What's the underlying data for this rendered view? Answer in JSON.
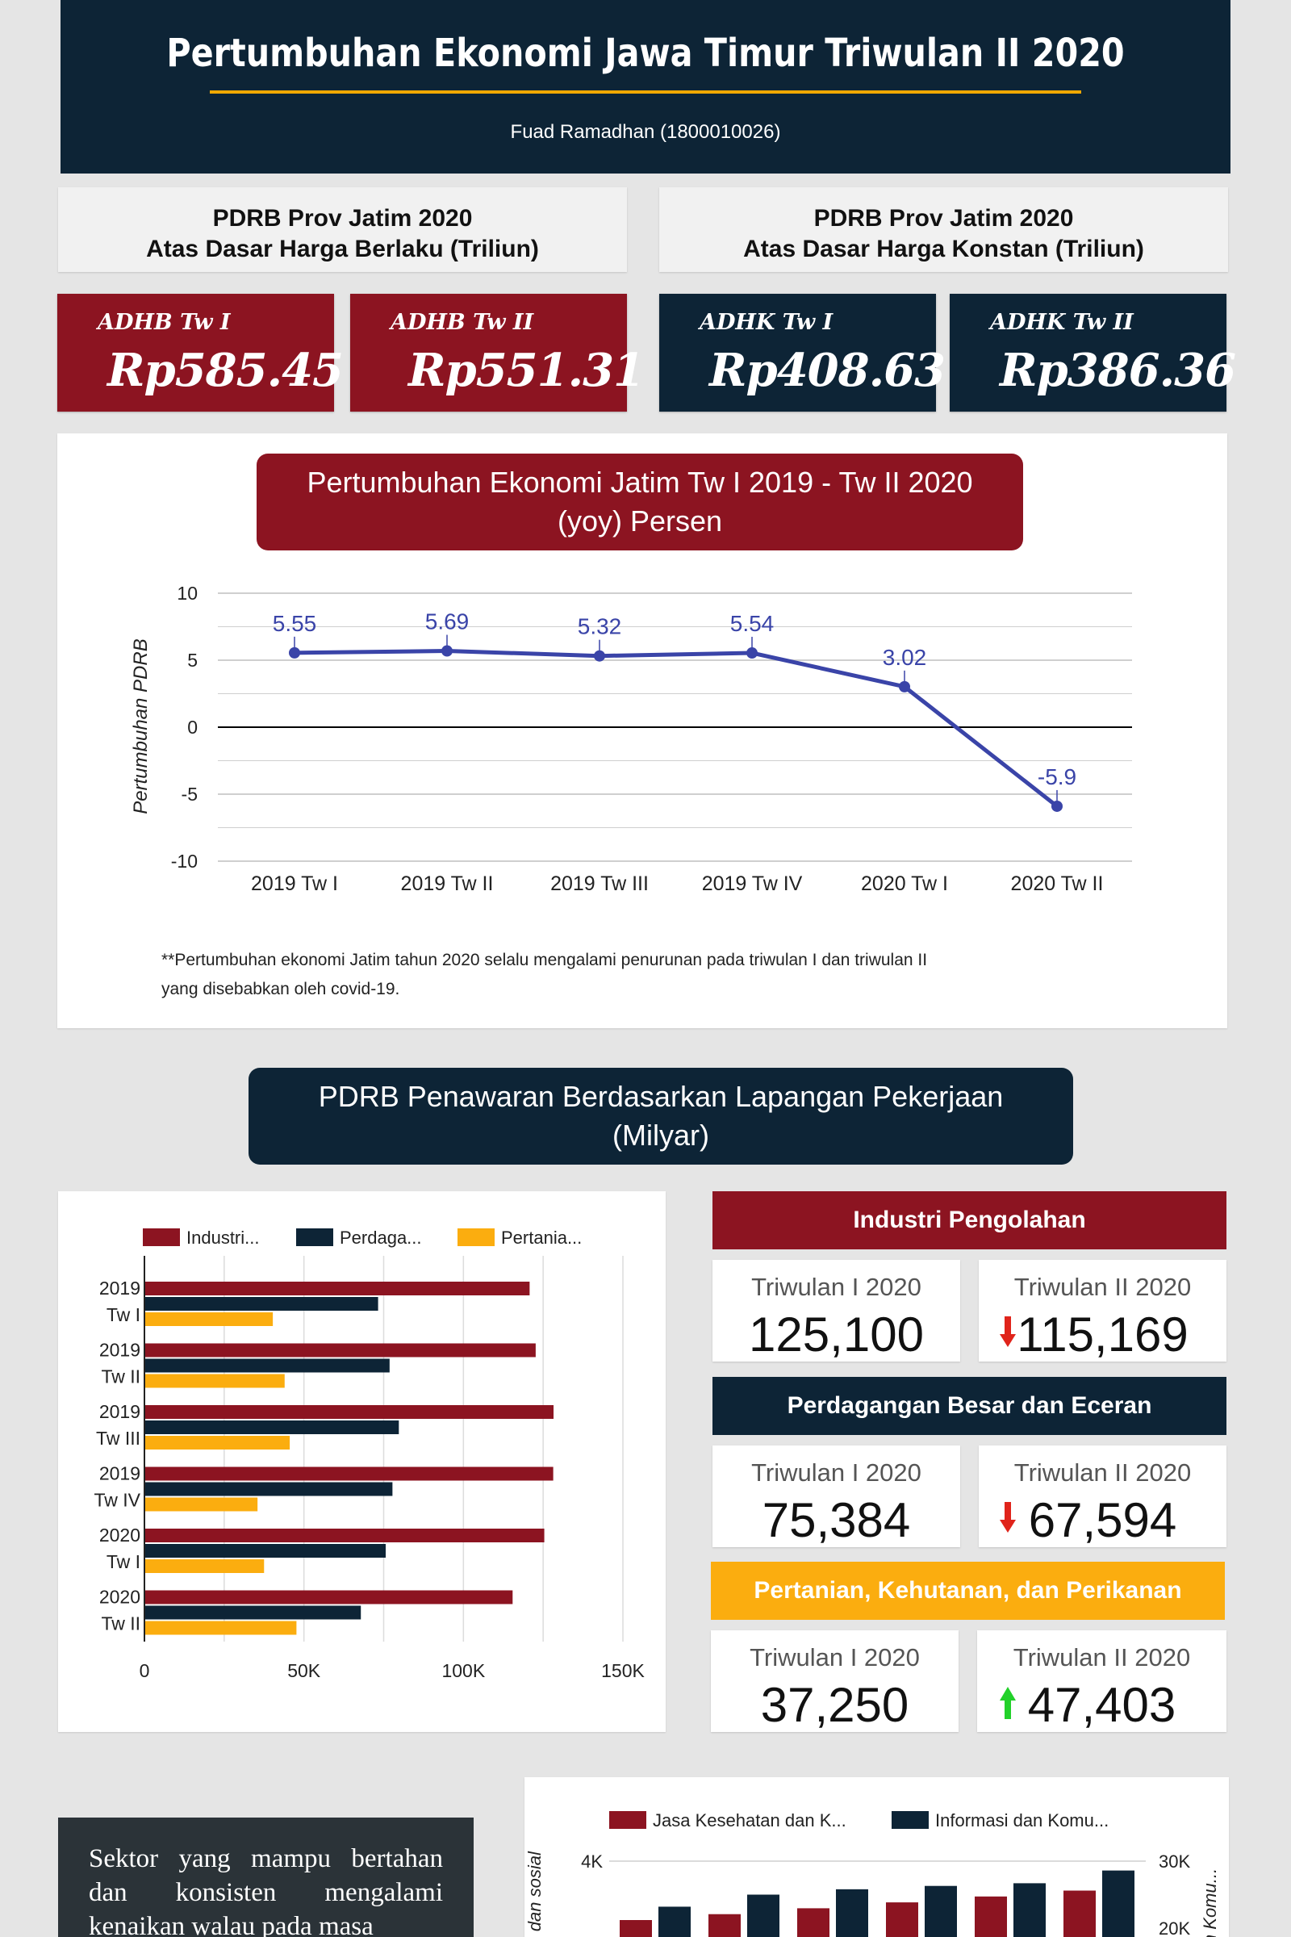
{
  "header": {
    "title": "Pertumbuhan Ekonomi Jawa Timur Triwulan II 2020",
    "author": "Fuad Ramadhan (1800010026)"
  },
  "summary": {
    "adhb_heading_1": "PDRB Prov Jatim 2020",
    "adhb_heading_2": "Atas Dasar Harga Berlaku (Triliun)",
    "adhk_heading_1": "PDRB Prov Jatim 2020",
    "adhk_heading_2": "Atas Dasar Harga Konstan (Triliun)",
    "tiles": [
      {
        "label": "ADHB Tw I",
        "value": "Rp585.45"
      },
      {
        "label": "ADHB Tw II",
        "value": "Rp551.31"
      },
      {
        "label": "ADHK Tw I",
        "value": "Rp408.63"
      },
      {
        "label": "ADHK Tw II",
        "value": "Rp386.36"
      }
    ]
  },
  "growth": {
    "title_line1": "Pertumbuhan Ekonomi Jatim Tw I 2019 - Tw II 2020",
    "title_line2": "(yoy) Persen",
    "note_line1": "**Pertumbuhan ekonomi Jatim tahun 2020 selalu mengalami penurunan pada triwulan I dan triwulan II",
    "note_line2": "yang disebabkan oleh covid-19."
  },
  "sector": {
    "title_line1": "PDRB Penawaran Berdasarkan Lapangan Pekerjaan",
    "title_line2": "(Milyar)",
    "cards": [
      {
        "name": "Industri Pengolahan",
        "q1_label": "Triwulan I 2020",
        "q1_value": "125,100",
        "q2_label": "Triwulan II 2020",
        "q2_value": "115,169",
        "trend": "down"
      },
      {
        "name": "Perdagangan Besar dan Eceran",
        "q1_label": "Triwulan I 2020",
        "q1_value": "75,384",
        "q2_label": "Triwulan II 2020",
        "q2_value": "67,594",
        "trend": "down"
      },
      {
        "name": "Pertanian, Kehutanan, dan Perikanan",
        "q1_label": "Triwulan I 2020",
        "q1_value": "37,250",
        "q2_label": "Triwulan II 2020",
        "q2_value": "47,403",
        "trend": "up"
      }
    ]
  },
  "note_box": {
    "text": "Sektor yang mampu bertahan dan konsisten mengalami kenaikan walau pada masa"
  },
  "colors": {
    "red": "#8c1421",
    "navy": "#0d2436",
    "amber": "#fbad0f",
    "line": "#3a44a8",
    "down": "#e0241b",
    "up": "#22d12a"
  },
  "chart_data": [
    {
      "type": "line",
      "categories": [
        "2019 Tw I",
        "2019 Tw II",
        "2019 Tw III",
        "2019 Tw IV",
        "2020 Tw I",
        "2020 Tw II"
      ],
      "series": [
        {
          "values": [
            5.55,
            5.69,
            5.32,
            5.54,
            3.02,
            -5.9
          ]
        }
      ],
      "data_labels": [
        "5.55",
        "5.69",
        "5.32",
        "5.54",
        "3.02",
        "-5.9"
      ],
      "ylabel": "Pertumbuhan PDRB",
      "ylim": [
        -10,
        10
      ],
      "yticks": [
        "10",
        "5",
        "0",
        "-5",
        "-10"
      ],
      "grid": true
    },
    {
      "type": "bar",
      "orientation": "horizontal",
      "categories": [
        [
          "2019",
          "Tw I"
        ],
        [
          "2019",
          "Tw II"
        ],
        [
          "2019",
          "Tw III"
        ],
        [
          "2019",
          "Tw IV"
        ],
        [
          "2020",
          "Tw I"
        ],
        [
          "2020",
          "Tw II"
        ]
      ],
      "series": [
        {
          "name": "Industri...",
          "values": [
            120500,
            122400,
            128000,
            127900,
            125100,
            115169
          ]
        },
        {
          "name": "Perdaga...",
          "values": [
            73000,
            76600,
            79500,
            77500,
            75384,
            67594
          ]
        },
        {
          "name": "Pertania...",
          "values": [
            40000,
            43700,
            45300,
            35200,
            37250,
            47403
          ]
        }
      ],
      "xlim": [
        0,
        150000
      ],
      "xticks": [
        "0",
        "50K",
        "100K",
        "150K"
      ],
      "legend": "top",
      "grid": true
    },
    {
      "type": "bar",
      "legend": "top",
      "series": [
        {
          "name": "Jasa Kesehatan dan K..."
        },
        {
          "name": "Informasi dan Komu..."
        }
      ],
      "y_left_ticks": [
        "4K"
      ],
      "y_right_ticks": [
        "30K",
        "20K"
      ],
      "ylabel_left": "tan dan sosial",
      "ylabel_right": "n Komu...",
      "bars": [
        {
          "left": 3500,
          "right": 23200
        },
        {
          "left": 3550,
          "right": 25000
        },
        {
          "left": 3600,
          "right": 25800
        },
        {
          "left": 3650,
          "right": 26300
        },
        {
          "left": 3700,
          "right": 26700
        },
        {
          "left": 3750,
          "right": 28600
        }
      ]
    }
  ]
}
